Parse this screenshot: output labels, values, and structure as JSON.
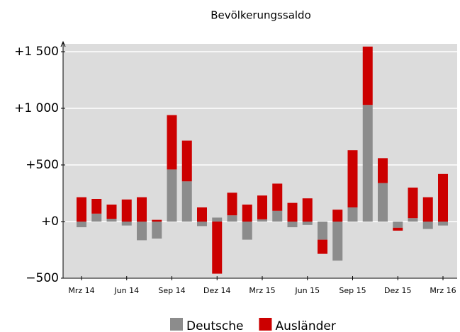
{
  "chart_data": {
    "type": "bar",
    "stacked": true,
    "title": "Bevölkerungssaldo",
    "categories": [
      "Mrz 14",
      null,
      null,
      "Jun 14",
      null,
      null,
      "Sep 14",
      null,
      null,
      "Dez 14",
      null,
      null,
      "Mrz 15",
      null,
      null,
      "Jun 15",
      null,
      null,
      "Sep 15",
      null,
      null,
      "Dez 15",
      null,
      null,
      "Mrz 16"
    ],
    "series": [
      {
        "name": "Deutsche",
        "color": "#8c8c8c",
        "values": [
          -50,
          70,
          25,
          -35,
          -165,
          -150,
          460,
          355,
          -40,
          35,
          55,
          -160,
          20,
          95,
          -50,
          -30,
          -160,
          -345,
          125,
          1030,
          340,
          -55,
          30,
          -65,
          -35
        ]
      },
      {
        "name": "Ausländer",
        "color": "#cc0000",
        "values": [
          215,
          130,
          125,
          195,
          215,
          15,
          480,
          360,
          125,
          -460,
          200,
          150,
          210,
          240,
          165,
          205,
          -125,
          105,
          505,
          515,
          220,
          -25,
          270,
          215,
          420
        ]
      }
    ],
    "ylim": [
      -500,
      1600
    ],
    "yticks": [
      {
        "value": -500,
        "label": "−500"
      },
      {
        "value": 0,
        "label": "+0"
      },
      {
        "value": 500,
        "label": "+500"
      },
      {
        "value": 1000,
        "label": "+1 000"
      },
      {
        "value": 1500,
        "label": "+1 500"
      }
    ],
    "grid": true,
    "legend": "bottom"
  }
}
